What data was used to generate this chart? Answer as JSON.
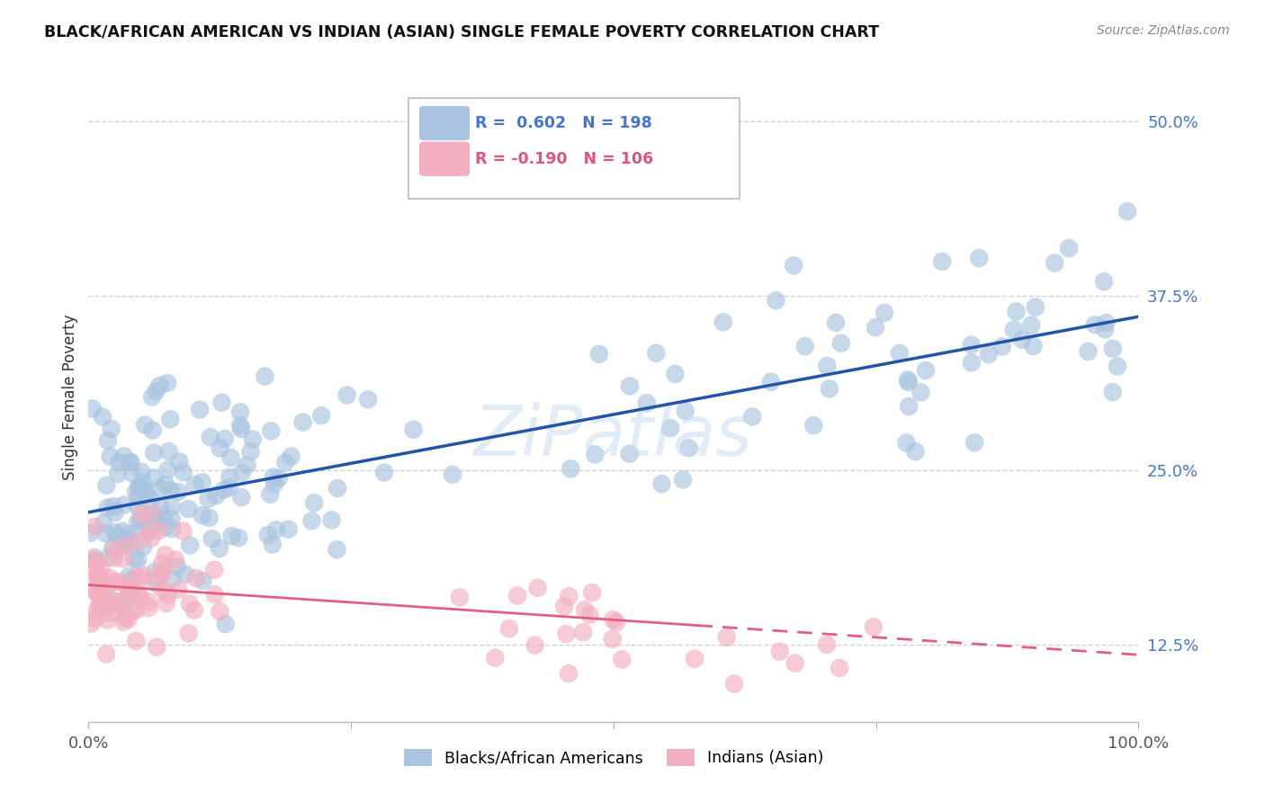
{
  "title": "BLACK/AFRICAN AMERICAN VS INDIAN (ASIAN) SINGLE FEMALE POVERTY CORRELATION CHART",
  "source": "Source: ZipAtlas.com",
  "ylabel": "Single Female Poverty",
  "ytick_labels": [
    "12.5%",
    "25.0%",
    "37.5%",
    "50.0%"
  ],
  "ytick_values": [
    0.125,
    0.25,
    0.375,
    0.5
  ],
  "xlim": [
    0.0,
    1.0
  ],
  "ylim": [
    0.07,
    0.535
  ],
  "blue_R": "0.602",
  "blue_N": "198",
  "pink_R": "-0.190",
  "pink_N": "106",
  "blue_color": "#a8c4e0",
  "pink_color": "#f2afc0",
  "blue_line_color": "#2255aa",
  "pink_line_color": "#e06080",
  "legend_label_blue": "Blacks/African Americans",
  "legend_label_pink": "Indians (Asian)",
  "background_color": "#ffffff",
  "grid_color": "#cccccc",
  "blue_tick_color": "#4477cc",
  "pink_tick_color": "#dd5577",
  "watermark_color": "#c5daf0",
  "watermark_alpha": 0.5,
  "title_color": "#111111",
  "source_color": "#888888"
}
